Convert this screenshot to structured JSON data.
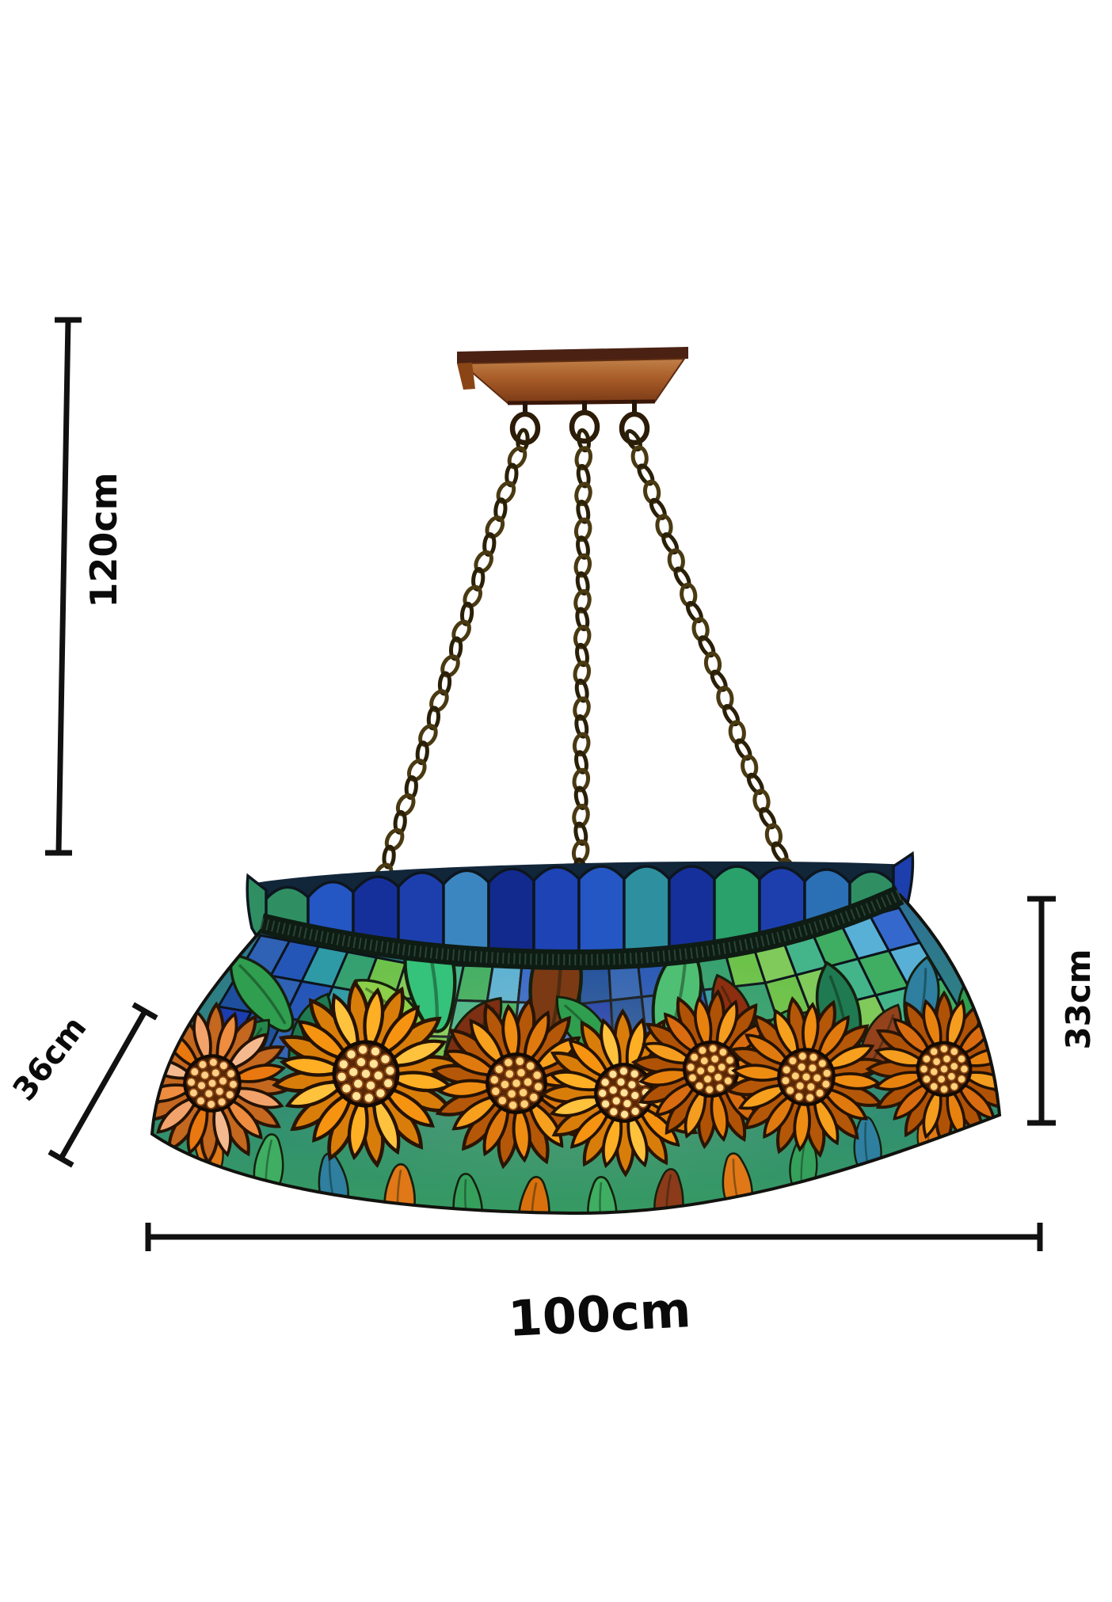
{
  "diagram": {
    "type": "product-dimensions",
    "background": "#ffffff",
    "labels": {
      "drop_height": "120cm",
      "shade_depth": "36cm",
      "shade_height": "33cm",
      "shade_width": "100cm"
    }
  },
  "style": {
    "dimension_line_color": "#111111",
    "label_color": "#0a0a0a",
    "canopy_top": "#4a2113",
    "canopy_wood_light": "#c08048",
    "canopy_wood": "#a85c28",
    "canopy_wood_dark": "#7a3a16",
    "chain_dark": "#2a2008",
    "chain_light": "#4a3a12",
    "trim": "#0e1c14",
    "trim_hatch": "#3e6a50",
    "flower_center": "#3a1a05",
    "body_top": "#2d6f95",
    "body_bottom": "#369a6f",
    "crown_palette": [
      "#2f8f63",
      "#2456c4",
      "#16309b",
      "#1d3fae",
      "#3b86c0",
      "#122a8e",
      "#1d43b5",
      "#2456c4",
      "#2e8f9e",
      "#16309b",
      "#2aa06b",
      "#1d3fae",
      "#2b6fb5",
      "#2f8f63"
    ],
    "tile_palette": [
      "#2f62b5",
      "#3fae62",
      "#2e9aa5",
      "#3568cc",
      "#6cc24a",
      "#1d4f9e",
      "#44b58b",
      "#2456b8",
      "#59b0d6",
      "#35a070",
      "#1b3db0",
      "#7fca5a"
    ],
    "flower_palettes": {
      "std": {
        "main": [
          "#ef8c12",
          "#e07a0e",
          "#f7a01d"
        ],
        "under": "#b55708",
        "bead": "#ffd27a"
      },
      "lit": {
        "main": [
          "#ffaf24",
          "#f69311",
          "#ffc23d"
        ],
        "under": "#d97d0a",
        "bead": "#ffe49a"
      },
      "peach": {
        "main": [
          "#f2a36b",
          "#ee8c3f",
          "#f4b98f",
          "#e8780f"
        ],
        "under": "#c4671f",
        "bead": "#ffcf87"
      },
      "std2": {
        "main": [
          "#e8820f",
          "#f59d1e",
          "#d96c10"
        ],
        "under": "#b05206",
        "bead": "#ffd27a"
      }
    }
  }
}
